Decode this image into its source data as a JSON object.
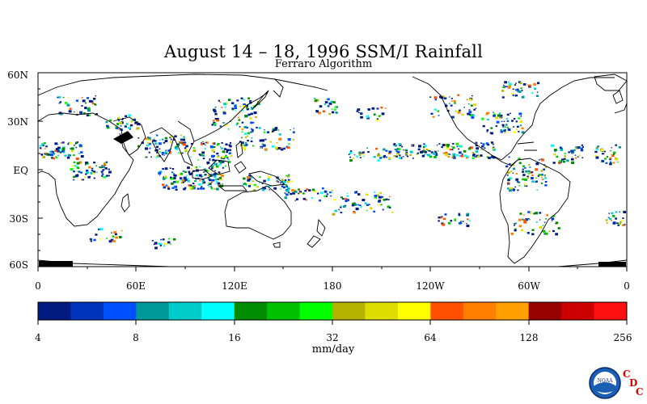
{
  "map": {
    "title": "August 14 – 18, 1996 SSM/I Rainfall",
    "subtitle": "Ferraro Algorithm",
    "lat_labels": [
      "60N",
      "30N",
      "EQ",
      "30S",
      "60S"
    ],
    "lon_labels": [
      "0",
      "60E",
      "120E",
      "180",
      "120W",
      "60W",
      "0"
    ]
  },
  "legend": {
    "units": "mm/day",
    "tick_labels": [
      "4",
      "8",
      "16",
      "32",
      "64",
      "128",
      "256"
    ],
    "colors": [
      "#001a80",
      "#0033bb",
      "#0050ff",
      "#009999",
      "#00cccc",
      "#00ffff",
      "#008c00",
      "#00c000",
      "#00ff00",
      "#b3b300",
      "#dddd00",
      "#ffff00",
      "#ff5000",
      "#ff8000",
      "#ffa000",
      "#990000",
      "#cc0000",
      "#ff1010"
    ]
  },
  "logo": {
    "name": "noaa-logo",
    "text": "NOAA",
    "cdc_letters": [
      "C",
      "D",
      "C"
    ],
    "cdc_color": "#dd0000"
  }
}
